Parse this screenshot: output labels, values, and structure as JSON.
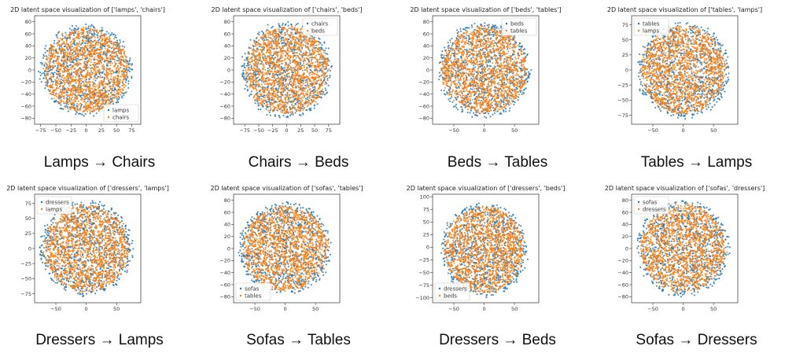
{
  "colors": {
    "series_a": "#1f77b4",
    "series_b": "#ff7f0e"
  },
  "chart_data": [
    {
      "type": "scatter",
      "title": "2D latent space visualization of ['lamps', 'chairs']",
      "caption": "Lamps → Chairs",
      "series": [
        {
          "name": "lamps"
        },
        {
          "name": "chairs"
        }
      ],
      "xlim": [
        -85,
        90
      ],
      "ylim": [
        -90,
        90
      ],
      "xticks": [
        -75,
        -50,
        -25,
        0,
        25,
        50,
        75
      ],
      "yticks": [
        -80,
        -60,
        -40,
        -20,
        0,
        20,
        40,
        60,
        80
      ],
      "cluster": {
        "cx": 0,
        "cy": 0,
        "rx": 75,
        "ry": 75
      },
      "legend": "lower-right"
    },
    {
      "type": "scatter",
      "title": "2D latent space visualization of ['chairs', 'beds']",
      "caption": "Chairs → Beds",
      "series": [
        {
          "name": "chairs"
        },
        {
          "name": "beds"
        }
      ],
      "xlim": [
        -95,
        95
      ],
      "ylim": [
        -90,
        90
      ],
      "xticks": [
        -75,
        -50,
        -25,
        0,
        25,
        50,
        75
      ],
      "yticks": [
        -80,
        -60,
        -40,
        -20,
        0,
        20,
        40,
        60,
        80
      ],
      "cluster": {
        "cx": 0,
        "cy": 0,
        "rx": 80,
        "ry": 78
      },
      "legend": "upper-right"
    },
    {
      "type": "scatter",
      "title": "2D latent space visualization of ['beds', 'tables']",
      "caption": "Beds → Tables",
      "series": [
        {
          "name": "beds"
        },
        {
          "name": "tables"
        }
      ],
      "xlim": [
        -85,
        90
      ],
      "ylim": [
        -90,
        90
      ],
      "xticks": [
        -50,
        0,
        50
      ],
      "yticks": [
        -80,
        -60,
        -40,
        -20,
        0,
        20,
        40,
        60,
        80
      ],
      "cluster": {
        "cx": 0,
        "cy": 0,
        "rx": 75,
        "ry": 78
      },
      "legend": "upper-right"
    },
    {
      "type": "scatter",
      "title": "2D latent space visualization of ['tables', 'lamps']",
      "caption": "Tables → Lamps",
      "series": [
        {
          "name": "tables"
        },
        {
          "name": "lamps"
        }
      ],
      "xlim": [
        -85,
        90
      ],
      "ylim": [
        -90,
        90
      ],
      "xticks": [
        -50,
        0,
        50
      ],
      "yticks": [
        -75,
        -50,
        -25,
        0,
        25,
        50,
        75
      ],
      "cluster": {
        "cx": 0,
        "cy": 0,
        "rx": 75,
        "ry": 78
      },
      "legend": "upper-left"
    },
    {
      "type": "scatter",
      "title": "2D latent space visualization of ['dressers', 'lamps']",
      "caption": "Dressers → Lamps",
      "series": [
        {
          "name": "dressers"
        },
        {
          "name": "lamps"
        }
      ],
      "xlim": [
        -85,
        90
      ],
      "ylim": [
        -90,
        90
      ],
      "xticks": [
        -50,
        0,
        50
      ],
      "yticks": [
        -75,
        -50,
        -25,
        0,
        25,
        50,
        75
      ],
      "cluster": {
        "cx": 0,
        "cy": 0,
        "rx": 75,
        "ry": 78
      },
      "legend": "upper-left"
    },
    {
      "type": "scatter",
      "title": "2D latent space visualization of ['sofas', 'tables']",
      "caption": "Sofas → Tables",
      "series": [
        {
          "name": "sofas"
        },
        {
          "name": "tables"
        }
      ],
      "xlim": [
        -85,
        90
      ],
      "ylim": [
        -90,
        90
      ],
      "xticks": [
        -50,
        0,
        50
      ],
      "yticks": [
        -80,
        -60,
        -40,
        -20,
        0,
        20,
        40,
        60,
        80
      ],
      "cluster": {
        "cx": 0,
        "cy": 0,
        "rx": 75,
        "ry": 75
      },
      "legend": "lower-left"
    },
    {
      "type": "scatter",
      "title": "2D latent space visualization of ['dressers', 'beds']",
      "caption": "Dressers → Beds",
      "series": [
        {
          "name": "dressers"
        },
        {
          "name": "beds"
        }
      ],
      "xlim": [
        -85,
        90
      ],
      "ylim": [
        -110,
        105
      ],
      "xticks": [
        -50,
        0,
        50
      ],
      "yticks": [
        -100,
        -75,
        -50,
        -25,
        0,
        25,
        50,
        75,
        100
      ],
      "cluster": {
        "cx": 0,
        "cy": -5,
        "rx": 70,
        "ry": 92
      },
      "legend": "lower-left"
    },
    {
      "type": "scatter",
      "title": "2D latent space visualization of ['sofas', 'dressers']",
      "caption": "Sofas → Dressers",
      "series": [
        {
          "name": "sofas"
        },
        {
          "name": "dressers"
        }
      ],
      "xlim": [
        -85,
        90
      ],
      "ylim": [
        -90,
        90
      ],
      "xticks": [
        -50,
        0,
        50
      ],
      "yticks": [
        -80,
        -60,
        -40,
        -20,
        0,
        20,
        40,
        60,
        80
      ],
      "cluster": {
        "cx": 0,
        "cy": 0,
        "rx": 75,
        "ry": 78
      },
      "legend": "upper-left"
    }
  ]
}
